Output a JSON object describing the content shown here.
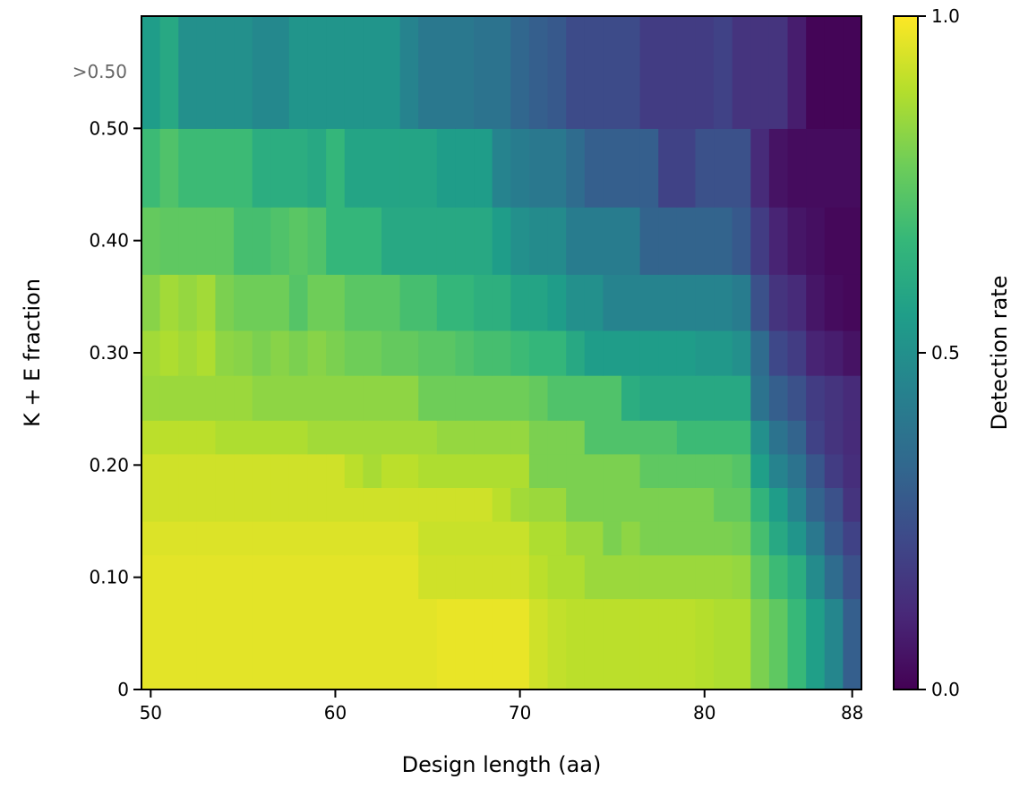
{
  "chart_data": {
    "type": "heatmap",
    "xlabel": "Design length (aa)",
    "ylabel": "K + E fraction",
    "colorbar_label": "Detection rate",
    "colorbar_ticks": [
      "0.0",
      "0.5",
      "1.0"
    ],
    "colorbar_tick_values": [
      0,
      0.5,
      1
    ],
    "colormap": "viridis",
    "zlim": [
      0,
      1
    ],
    "x_ticks": [
      50,
      60,
      70,
      80,
      88
    ],
    "x_tick_labels": [
      "50",
      "60",
      "70",
      "80",
      "88"
    ],
    "y_ticks": [
      0,
      0.1,
      0.2,
      0.3,
      0.4,
      0.5
    ],
    "y_tick_labels": [
      "0",
      "0.10",
      "0.20",
      "0.30",
      "0.40",
      "0.50"
    ],
    "overflow_label": ">0.50",
    "xlim": [
      49.5,
      88.5
    ],
    "ylim": [
      0,
      0.6
    ],
    "x_values": [
      50,
      51,
      52,
      53,
      54,
      55,
      56,
      57,
      58,
      59,
      60,
      61,
      62,
      63,
      64,
      65,
      66,
      67,
      68,
      69,
      70,
      71,
      72,
      73,
      74,
      75,
      76,
      77,
      78,
      79,
      80,
      81,
      82,
      83,
      84,
      85,
      86,
      87,
      88
    ],
    "y_bin_edges": [
      0,
      0.081,
      0.12,
      0.15,
      0.18,
      0.21,
      0.24,
      0.28,
      0.32,
      0.37,
      0.43,
      0.5,
      0.6
    ],
    "values": [
      [
        0.96,
        0.96,
        0.96,
        0.96,
        0.96,
        0.96,
        0.96,
        0.96,
        0.96,
        0.96,
        0.96,
        0.96,
        0.96,
        0.96,
        0.96,
        0.96,
        0.97,
        0.97,
        0.97,
        0.97,
        0.97,
        0.93,
        0.91,
        0.9,
        0.9,
        0.9,
        0.9,
        0.9,
        0.9,
        0.9,
        0.89,
        0.88,
        0.88,
        0.8,
        0.75,
        0.67,
        0.56,
        0.46,
        0.3
      ],
      [
        0.96,
        0.96,
        0.96,
        0.96,
        0.96,
        0.96,
        0.96,
        0.96,
        0.96,
        0.96,
        0.96,
        0.96,
        0.96,
        0.96,
        0.96,
        0.93,
        0.93,
        0.93,
        0.93,
        0.93,
        0.93,
        0.9,
        0.88,
        0.88,
        0.85,
        0.85,
        0.85,
        0.85,
        0.85,
        0.85,
        0.85,
        0.85,
        0.84,
        0.75,
        0.68,
        0.62,
        0.48,
        0.35,
        0.25
      ],
      [
        0.95,
        0.95,
        0.95,
        0.95,
        0.95,
        0.95,
        0.95,
        0.95,
        0.95,
        0.95,
        0.95,
        0.95,
        0.95,
        0.95,
        0.95,
        0.92,
        0.92,
        0.92,
        0.92,
        0.92,
        0.92,
        0.88,
        0.88,
        0.85,
        0.85,
        0.8,
        0.83,
        0.8,
        0.8,
        0.8,
        0.8,
        0.8,
        0.79,
        0.7,
        0.6,
        0.52,
        0.4,
        0.28,
        0.2
      ],
      [
        0.93,
        0.93,
        0.93,
        0.93,
        0.93,
        0.93,
        0.93,
        0.93,
        0.93,
        0.93,
        0.93,
        0.93,
        0.93,
        0.93,
        0.93,
        0.93,
        0.93,
        0.93,
        0.93,
        0.9,
        0.86,
        0.85,
        0.85,
        0.8,
        0.8,
        0.8,
        0.8,
        0.8,
        0.8,
        0.8,
        0.8,
        0.76,
        0.76,
        0.65,
        0.55,
        0.45,
        0.32,
        0.25,
        0.15
      ],
      [
        0.93,
        0.93,
        0.93,
        0.93,
        0.93,
        0.93,
        0.93,
        0.93,
        0.93,
        0.93,
        0.93,
        0.9,
        0.87,
        0.9,
        0.9,
        0.88,
        0.88,
        0.88,
        0.88,
        0.88,
        0.88,
        0.8,
        0.8,
        0.8,
        0.8,
        0.8,
        0.8,
        0.75,
        0.75,
        0.75,
        0.75,
        0.75,
        0.73,
        0.56,
        0.45,
        0.38,
        0.27,
        0.18,
        0.13
      ],
      [
        0.9,
        0.9,
        0.9,
        0.9,
        0.88,
        0.88,
        0.88,
        0.88,
        0.88,
        0.86,
        0.86,
        0.86,
        0.86,
        0.86,
        0.86,
        0.86,
        0.84,
        0.84,
        0.84,
        0.84,
        0.84,
        0.8,
        0.8,
        0.8,
        0.72,
        0.72,
        0.72,
        0.72,
        0.72,
        0.68,
        0.68,
        0.68,
        0.68,
        0.5,
        0.38,
        0.32,
        0.2,
        0.15,
        0.12
      ],
      [
        0.85,
        0.85,
        0.85,
        0.85,
        0.85,
        0.85,
        0.83,
        0.83,
        0.83,
        0.83,
        0.83,
        0.83,
        0.83,
        0.83,
        0.83,
        0.78,
        0.78,
        0.78,
        0.78,
        0.78,
        0.78,
        0.76,
        0.72,
        0.72,
        0.72,
        0.72,
        0.62,
        0.6,
        0.6,
        0.6,
        0.6,
        0.6,
        0.6,
        0.38,
        0.3,
        0.25,
        0.18,
        0.15,
        0.12
      ],
      [
        0.86,
        0.88,
        0.86,
        0.88,
        0.83,
        0.82,
        0.8,
        0.82,
        0.8,
        0.82,
        0.8,
        0.78,
        0.78,
        0.76,
        0.76,
        0.74,
        0.74,
        0.72,
        0.7,
        0.7,
        0.68,
        0.66,
        0.66,
        0.6,
        0.55,
        0.55,
        0.55,
        0.55,
        0.55,
        0.55,
        0.53,
        0.53,
        0.5,
        0.35,
        0.22,
        0.18,
        0.1,
        0.08,
        0.05
      ],
      [
        0.82,
        0.86,
        0.84,
        0.86,
        0.8,
        0.78,
        0.78,
        0.78,
        0.73,
        0.78,
        0.78,
        0.74,
        0.74,
        0.74,
        0.7,
        0.7,
        0.66,
        0.66,
        0.63,
        0.63,
        0.58,
        0.58,
        0.55,
        0.5,
        0.5,
        0.45,
        0.45,
        0.45,
        0.45,
        0.45,
        0.45,
        0.45,
        0.42,
        0.25,
        0.15,
        0.12,
        0.06,
        0.03,
        0.02
      ],
      [
        0.76,
        0.75,
        0.75,
        0.75,
        0.75,
        0.7,
        0.7,
        0.72,
        0.74,
        0.72,
        0.66,
        0.66,
        0.66,
        0.6,
        0.6,
        0.6,
        0.6,
        0.6,
        0.6,
        0.55,
        0.5,
        0.48,
        0.48,
        0.42,
        0.42,
        0.42,
        0.42,
        0.32,
        0.32,
        0.32,
        0.32,
        0.32,
        0.28,
        0.18,
        0.1,
        0.06,
        0.04,
        0.02,
        0.02
      ],
      [
        0.68,
        0.72,
        0.68,
        0.68,
        0.68,
        0.68,
        0.62,
        0.62,
        0.62,
        0.6,
        0.66,
        0.58,
        0.58,
        0.58,
        0.58,
        0.58,
        0.55,
        0.55,
        0.55,
        0.45,
        0.42,
        0.4,
        0.4,
        0.35,
        0.3,
        0.3,
        0.3,
        0.3,
        0.2,
        0.2,
        0.25,
        0.25,
        0.25,
        0.12,
        0.05,
        0.03,
        0.03,
        0.03,
        0.03
      ],
      [
        0.55,
        0.6,
        0.5,
        0.5,
        0.5,
        0.5,
        0.47,
        0.47,
        0.52,
        0.52,
        0.52,
        0.52,
        0.52,
        0.52,
        0.45,
        0.4,
        0.4,
        0.4,
        0.38,
        0.38,
        0.33,
        0.3,
        0.28,
        0.23,
        0.23,
        0.23,
        0.23,
        0.18,
        0.18,
        0.18,
        0.18,
        0.2,
        0.15,
        0.15,
        0.15,
        0.08,
        0.01,
        0.01,
        0.01
      ]
    ]
  }
}
